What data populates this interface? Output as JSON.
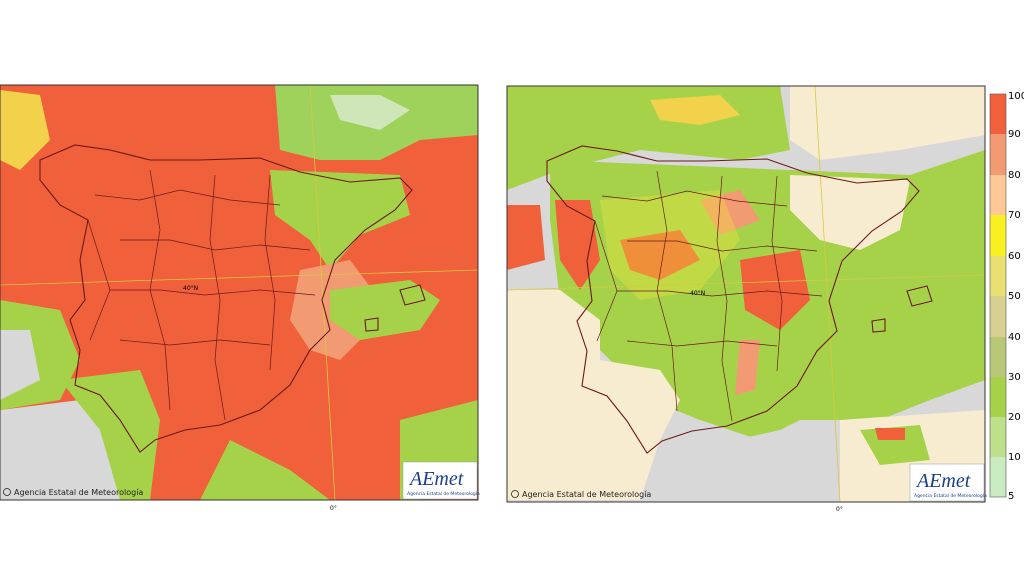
{
  "panels": [
    {
      "copyright": "Agencia Estatal de Meteorología",
      "logo": "AEmet",
      "logo_subtitle": "Agencia Estatal de Meteorología",
      "longitude_label": "0°",
      "latitude_label": "40°N"
    },
    {
      "copyright": "Agencia Estatal de Meteorología",
      "logo": "AEmet",
      "logo_subtitle": "Agencia Estatal de Meteorología",
      "longitude_label": "0°",
      "latitude_label": "40°N"
    }
  ],
  "colorbar": {
    "ticks": [
      100,
      90,
      80,
      70,
      60,
      50,
      40,
      30,
      20,
      10,
      5
    ]
  }
}
